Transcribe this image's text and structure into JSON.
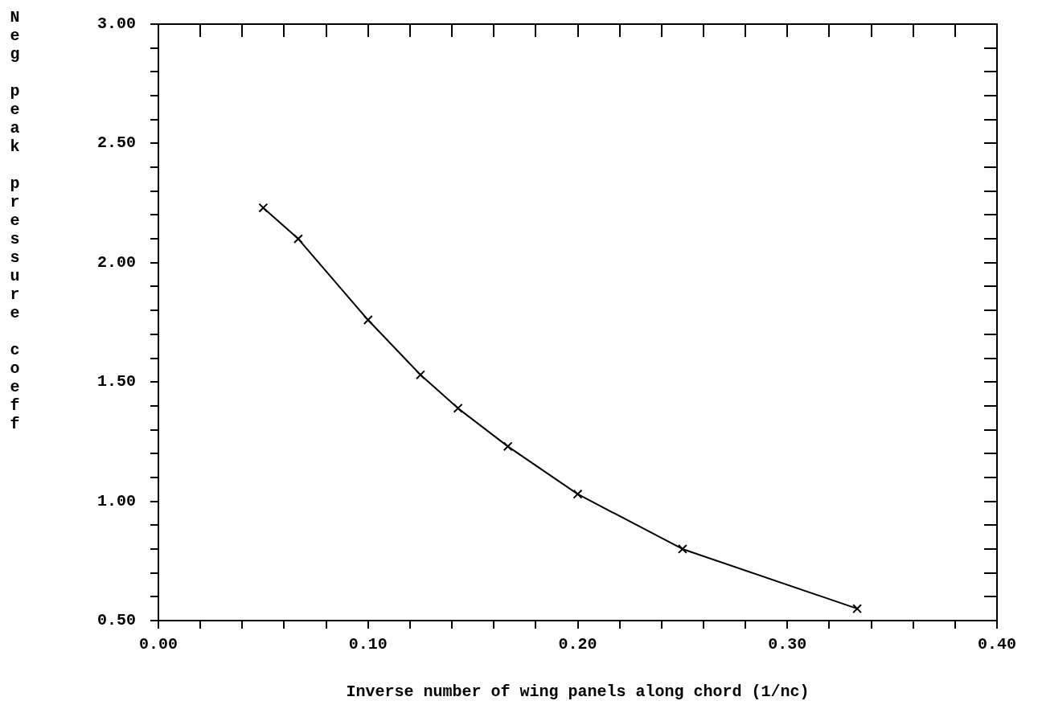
{
  "chart_data": {
    "type": "line",
    "xlabel": "Inverse number of wing panels along chord (1/nc)",
    "ylabel": "Neg peak pressure coeff",
    "x": [
      0.05,
      0.0667,
      0.1,
      0.125,
      0.1429,
      0.1667,
      0.2,
      0.25,
      0.3333
    ],
    "series": [
      {
        "color": "#000000",
        "values": [
          2.23,
          2.1,
          1.76,
          1.53,
          1.39,
          1.23,
          1.03,
          0.8,
          0.55
        ]
      }
    ],
    "xlim": [
      0,
      0.4
    ],
    "ylim": [
      0.5,
      3
    ],
    "xticks": [
      {
        "value": 0,
        "label": "0.00"
      },
      {
        "value": 0.02,
        "label": null
      },
      {
        "value": 0.04,
        "label": null
      },
      {
        "value": 0.06,
        "label": null
      },
      {
        "value": 0.08,
        "label": null
      },
      {
        "value": 0.1,
        "label": "0.10"
      },
      {
        "value": 0.12,
        "label": null
      },
      {
        "value": 0.14,
        "label": null
      },
      {
        "value": 0.16,
        "label": null
      },
      {
        "value": 0.18,
        "label": null
      },
      {
        "value": 0.2,
        "label": "0.20"
      },
      {
        "value": 0.22,
        "label": null
      },
      {
        "value": 0.24,
        "label": null
      },
      {
        "value": 0.26,
        "label": null
      },
      {
        "value": 0.28,
        "label": null
      },
      {
        "value": 0.3,
        "label": "0.30"
      },
      {
        "value": 0.32,
        "label": null
      },
      {
        "value": 0.34,
        "label": null
      },
      {
        "value": 0.36,
        "label": null
      },
      {
        "value": 0.38,
        "label": null
      },
      {
        "value": 0.4,
        "label": "0.40"
      }
    ],
    "yticks": [
      {
        "value": 0.5,
        "label": "0.50"
      },
      {
        "value": 0.6,
        "label": null
      },
      {
        "value": 0.7,
        "label": null
      },
      {
        "value": 0.8,
        "label": null
      },
      {
        "value": 0.9,
        "label": null
      },
      {
        "value": 1,
        "label": "1.00"
      },
      {
        "value": 1.1,
        "label": null
      },
      {
        "value": 1.2,
        "label": null
      },
      {
        "value": 1.3,
        "label": null
      },
      {
        "value": 1.4,
        "label": null
      },
      {
        "value": 1.5,
        "label": "1.50"
      },
      {
        "value": 1.6,
        "label": null
      },
      {
        "value": 1.7,
        "label": null
      },
      {
        "value": 1.8,
        "label": null
      },
      {
        "value": 1.9,
        "label": null
      },
      {
        "value": 2,
        "label": "2.00"
      },
      {
        "value": 2.1,
        "label": null
      },
      {
        "value": 2.2,
        "label": null
      },
      {
        "value": 2.3,
        "label": null
      },
      {
        "value": 2.4,
        "label": null
      },
      {
        "value": 2.5,
        "label": "2.50"
      },
      {
        "value": 2.6,
        "label": null
      },
      {
        "value": 2.7,
        "label": null
      },
      {
        "value": 2.8,
        "label": null
      },
      {
        "value": 2.9,
        "label": null
      },
      {
        "value": 3,
        "label": "3.00"
      }
    ],
    "grid": false,
    "legend": false,
    "marker": "cross",
    "line_style": "solid"
  }
}
